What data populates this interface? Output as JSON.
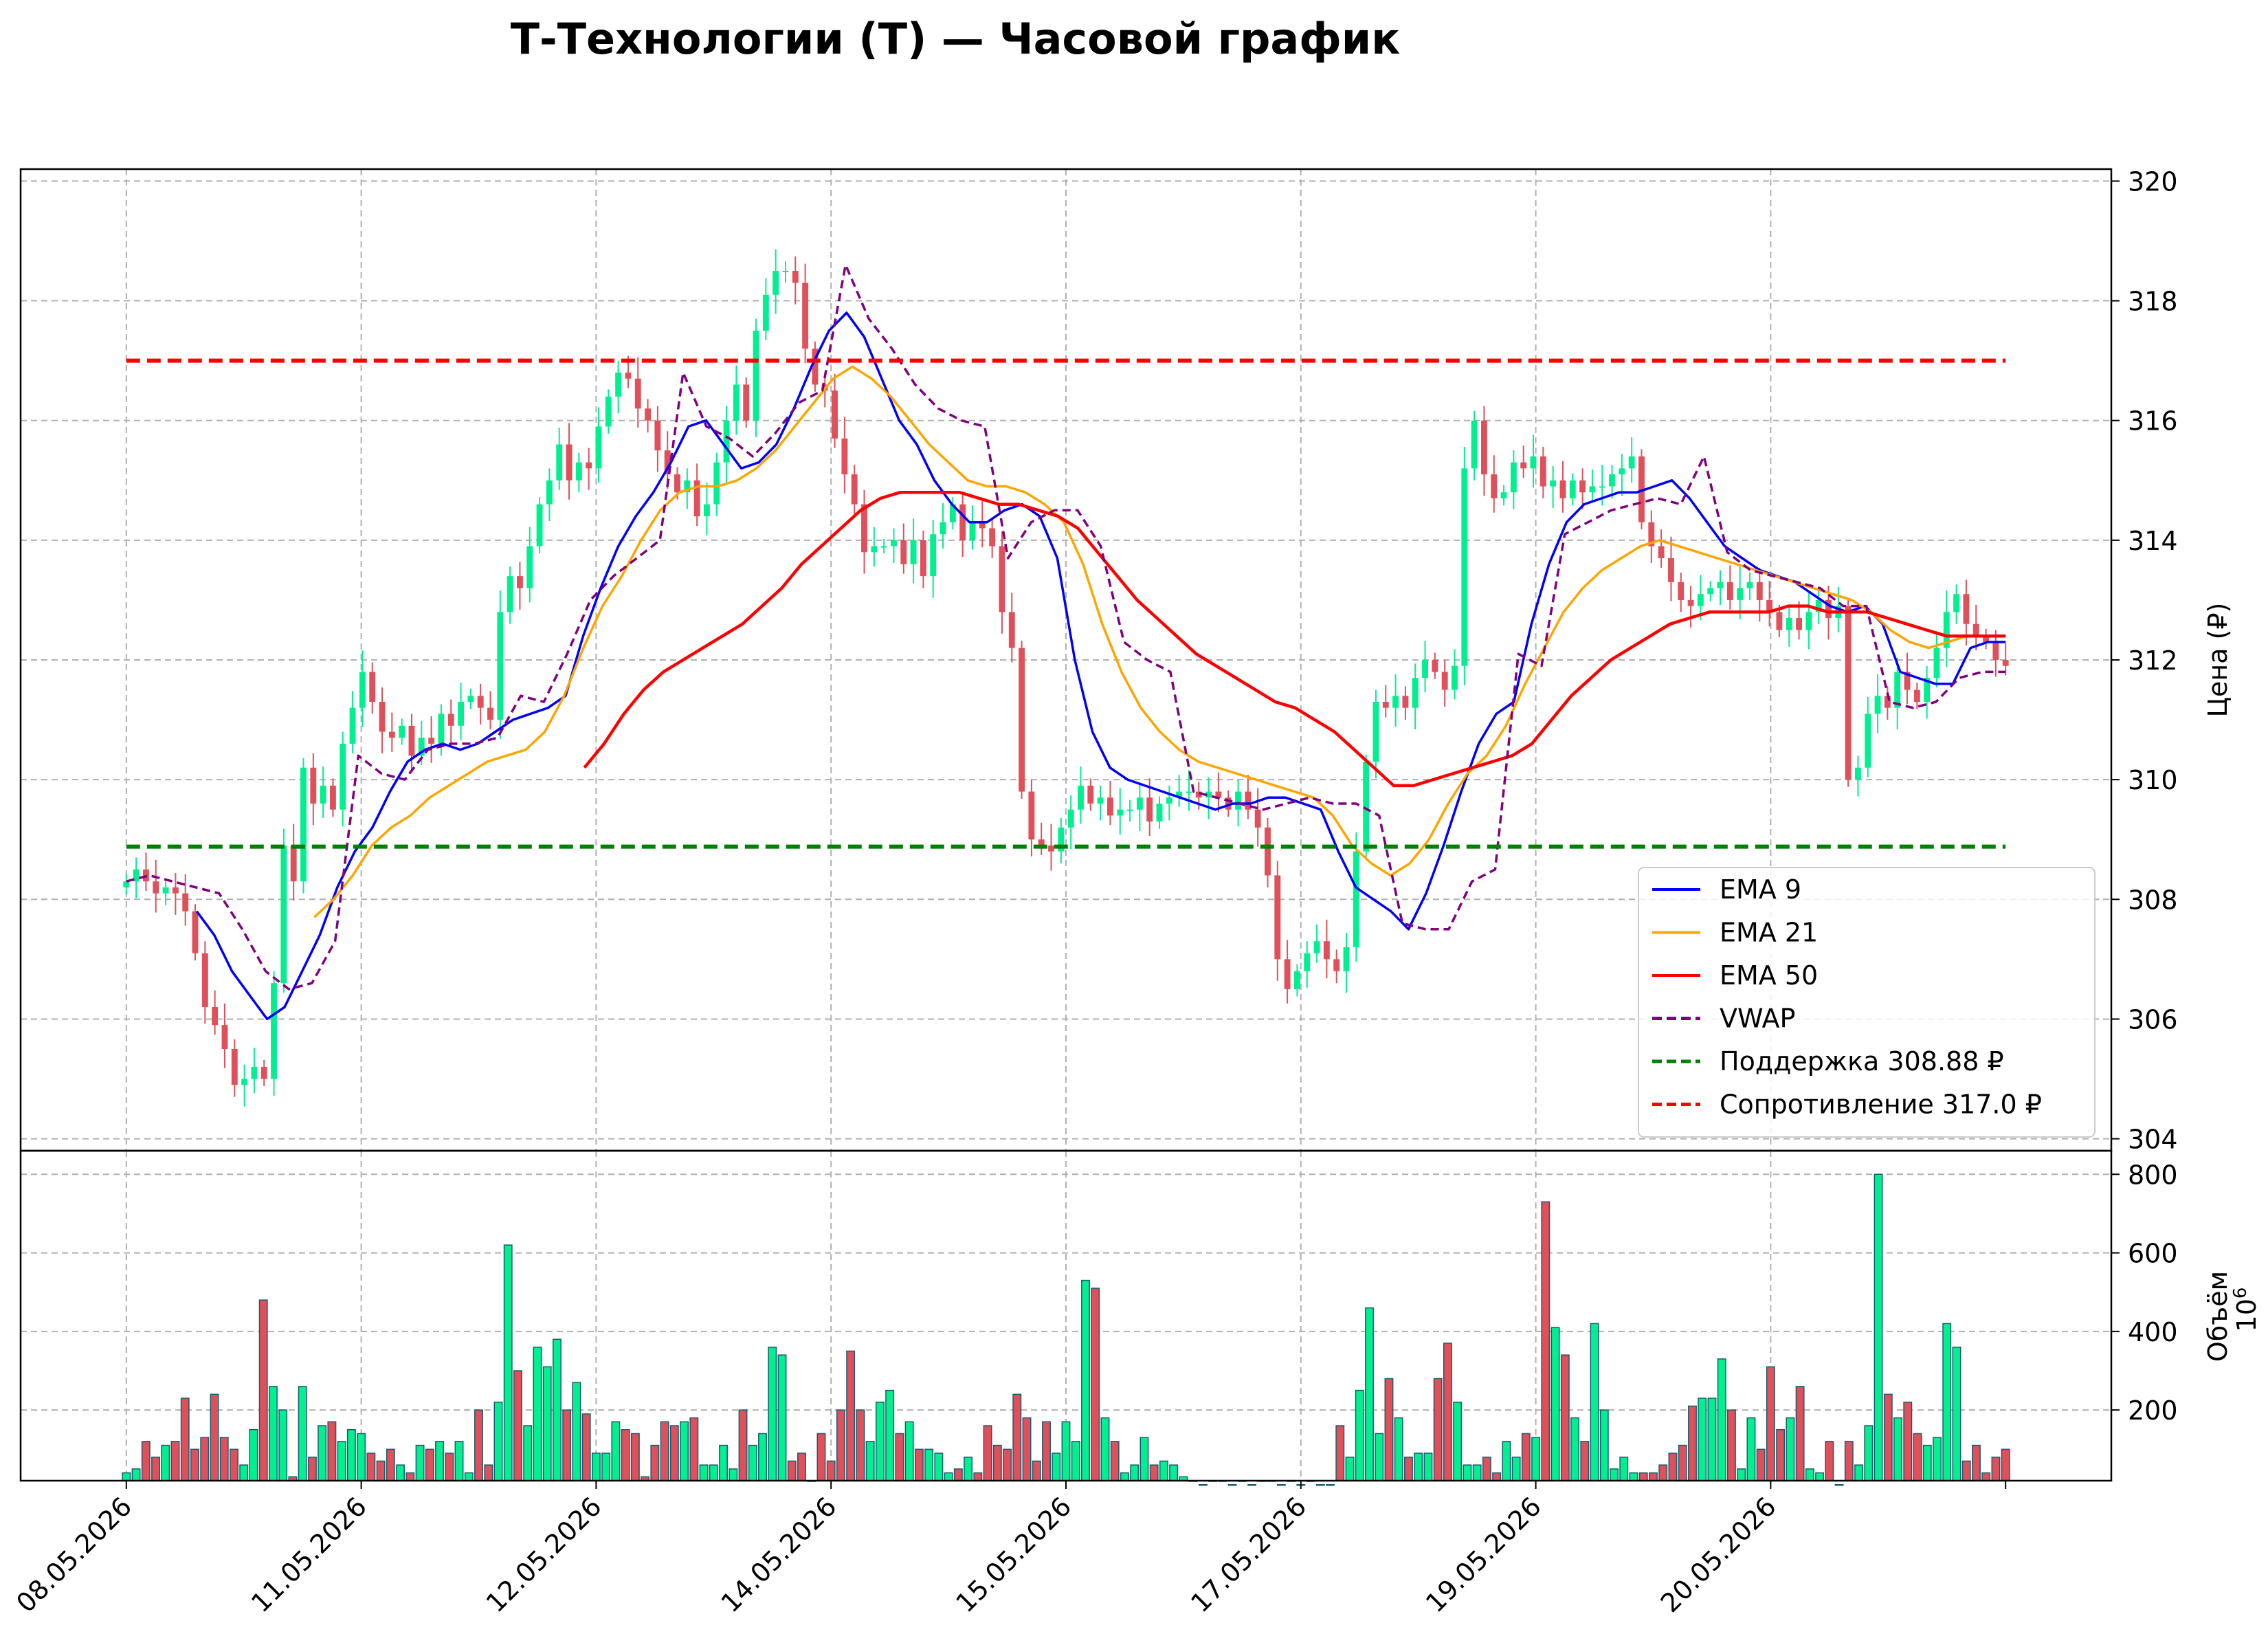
{
  "chart_data": {
    "type": "candlestick",
    "title": "Т-Технологии (Т) — Часовой график",
    "price_panel": {
      "ylabel": "Цена (₽)",
      "ylim": [
        303.8,
        320.2
      ],
      "yticks": [
        304,
        306,
        308,
        310,
        312,
        314,
        316,
        318,
        320
      ],
      "grid": true,
      "legend_position": "lower-right",
      "support": {
        "label": "Поддержка 308.88 ₽",
        "value": 308.88,
        "color": "#008000",
        "x_range": [
          0,
          160
        ]
      },
      "resistance": {
        "label": "Сопротивление 317.0 ₽",
        "value": 317.0,
        "color": "#ff0000",
        "x_range": [
          0,
          160
        ]
      },
      "candle_colors": {
        "up": "#00f090",
        "down": "#e0505a"
      },
      "candles_close": [
        308.3,
        308.5,
        308.3,
        308.1,
        308.2,
        308.1,
        307.8,
        307.1,
        306.2,
        305.9,
        305.5,
        304.9,
        305.0,
        305.2,
        305.0,
        306.6,
        308.9,
        308.3,
        310.2,
        309.6,
        309.9,
        309.5,
        310.6,
        311.2,
        311.8,
        311.3,
        310.8,
        310.7,
        310.9,
        310.4,
        310.7,
        310.6,
        311.1,
        310.9,
        311.3,
        311.4,
        311.2,
        311.0,
        312.8,
        313.4,
        313.2,
        313.9,
        314.6,
        315.0,
        315.6,
        315.0,
        315.3,
        315.2,
        315.9,
        316.4,
        316.8,
        316.7,
        316.2,
        316.0,
        315.5,
        315.1,
        314.8,
        315.0,
        314.4,
        314.6,
        315.3,
        316.0,
        316.6,
        316.0,
        317.5,
        318.1,
        318.5,
        318.5,
        318.3,
        317.2,
        316.6,
        316.5,
        315.7,
        315.1,
        314.6,
        313.8,
        313.9,
        313.9,
        314.0,
        313.6,
        314.0,
        313.4,
        314.1,
        314.3,
        314.6,
        314.0,
        314.3,
        314.2,
        313.9,
        312.8,
        312.2,
        309.8,
        309.0,
        308.9,
        308.8,
        309.2,
        309.5,
        309.9,
        309.6,
        309.7,
        309.4,
        309.5,
        309.5,
        309.7,
        309.3,
        309.6,
        309.7,
        309.8,
        309.8,
        309.7,
        309.8,
        309.7,
        309.5,
        309.8,
        309.5,
        309.2,
        308.4,
        307.0,
        306.5,
        306.8,
        307.1,
        307.3,
        307.0,
        306.8,
        307.2,
        308.8,
        310.3,
        311.3,
        311.2,
        311.4,
        311.2,
        311.7,
        312.0,
        311.8,
        311.5,
        311.9,
        315.2,
        316.0,
        315.1,
        314.7,
        314.8,
        315.3,
        315.2,
        315.4,
        314.9,
        315.0,
        314.7,
        315.0,
        314.8,
        314.9,
        314.9,
        315.1,
        315.2,
        315.4,
        314.3,
        313.9,
        313.7,
        313.3,
        313.0,
        312.9,
        313.1,
        313.2,
        313.3,
        313.0,
        313.2,
        313.3,
        313.0,
        312.8,
        312.5,
        312.7,
        312.5,
        312.8,
        313.0,
        312.7,
        312.9,
        310.0,
        310.2,
        311.1,
        311.4,
        311.2,
        311.8,
        311.5,
        311.3,
        311.7,
        312.2,
        312.8,
        313.1,
        312.6,
        312.4,
        312.3,
        312.0,
        311.9
      ],
      "series": [
        {
          "name": "EMA 9",
          "color": "#0000ff",
          "style": "solid",
          "x0": 6,
          "x1": 160,
          "values": [
            307.8,
            307.4,
            306.8,
            306.4,
            306.0,
            306.2,
            306.8,
            307.4,
            308.2,
            308.8,
            309.2,
            309.8,
            310.3,
            310.5,
            310.6,
            310.5,
            310.6,
            310.8,
            311.0,
            311.1,
            311.2,
            311.4,
            312.4,
            313.2,
            313.9,
            314.4,
            314.8,
            315.3,
            315.9,
            316.0,
            315.6,
            315.2,
            315.3,
            315.6,
            316.2,
            316.9,
            317.5,
            317.8,
            317.4,
            316.7,
            316.0,
            315.6,
            315.0,
            314.6,
            314.3,
            314.3,
            314.5,
            314.6,
            314.4,
            313.7,
            312.0,
            310.8,
            310.2,
            310.0,
            309.9,
            309.8,
            309.7,
            309.6,
            309.5,
            309.6,
            309.6,
            309.7,
            309.7,
            309.6,
            309.5,
            308.8,
            308.2,
            308.0,
            307.8,
            307.5,
            308.1,
            308.9,
            309.8,
            310.6,
            311.1,
            311.3,
            312.6,
            313.6,
            314.3,
            314.6,
            314.7,
            314.8,
            314.8,
            314.9,
            315.0,
            314.7,
            314.3,
            313.9,
            313.7,
            313.5,
            313.4,
            313.3,
            313.1,
            312.9,
            312.8,
            312.9,
            312.6,
            311.8,
            311.7,
            311.6,
            311.6,
            312.2,
            312.3,
            312.3
          ]
        },
        {
          "name": "EMA 21",
          "color": "#ffa500",
          "style": "solid",
          "x0": 16,
          "x1": 160,
          "values": [
            307.7,
            308.0,
            308.4,
            308.9,
            309.2,
            309.4,
            309.7,
            309.9,
            310.1,
            310.3,
            310.4,
            310.5,
            310.8,
            311.4,
            312.2,
            312.9,
            313.4,
            314.0,
            314.5,
            314.8,
            314.9,
            314.9,
            315.0,
            315.2,
            315.5,
            315.9,
            316.3,
            316.7,
            316.9,
            316.7,
            316.4,
            316.0,
            315.6,
            315.3,
            315.0,
            314.9,
            314.9,
            314.8,
            314.6,
            314.3,
            313.6,
            312.6,
            311.8,
            311.2,
            310.8,
            310.5,
            310.3,
            310.2,
            310.1,
            310.0,
            309.9,
            309.8,
            309.7,
            309.4,
            308.9,
            308.6,
            308.4,
            308.6,
            309.0,
            309.6,
            310.1,
            310.4,
            310.9,
            311.6,
            312.2,
            312.8,
            313.2,
            313.5,
            313.7,
            313.9,
            314.0,
            313.9,
            313.8,
            313.7,
            313.6,
            313.5,
            313.4,
            313.3,
            313.2,
            313.1,
            313.0,
            312.8,
            312.5,
            312.3,
            312.2,
            312.3,
            312.4,
            312.4,
            312.4
          ]
        },
        {
          "name": "EMA 50",
          "color": "#ff0000",
          "style": "solid",
          "x0": 39,
          "x1": 160,
          "values": [
            310.2,
            310.6,
            311.1,
            311.5,
            311.8,
            312.0,
            312.2,
            312.4,
            312.6,
            312.9,
            313.2,
            313.6,
            313.9,
            314.2,
            314.5,
            314.7,
            314.8,
            314.8,
            314.8,
            314.8,
            314.7,
            314.6,
            314.6,
            314.5,
            314.4,
            314.2,
            313.8,
            313.4,
            313.0,
            312.7,
            312.4,
            312.1,
            311.9,
            311.7,
            311.5,
            311.3,
            311.2,
            311.0,
            310.8,
            310.5,
            310.2,
            309.9,
            309.9,
            310.0,
            310.1,
            310.2,
            310.3,
            310.4,
            310.6,
            311.0,
            311.4,
            311.7,
            312.0,
            312.2,
            312.4,
            312.6,
            312.7,
            312.8,
            312.8,
            312.8,
            312.8,
            312.9,
            312.9,
            312.8,
            312.8,
            312.8,
            312.7,
            312.6,
            312.5,
            312.4,
            312.4,
            312.4,
            312.4
          ]
        },
        {
          "name": "VWAP",
          "color": "#800080",
          "style": "dashed",
          "x0": 0,
          "x1": 160,
          "values": [
            308.3,
            308.4,
            308.3,
            308.2,
            308.1,
            307.5,
            306.8,
            306.5,
            306.6,
            307.3,
            310.4,
            310.1,
            310.0,
            310.5,
            310.6,
            310.6,
            310.7,
            311.4,
            311.3,
            312.1,
            313.0,
            313.4,
            313.7,
            314.0,
            316.8,
            315.9,
            315.7,
            315.4,
            315.8,
            316.3,
            316.5,
            318.6,
            317.7,
            317.2,
            316.6,
            316.2,
            316.0,
            315.9,
            313.7,
            314.3,
            314.5,
            314.5,
            313.9,
            312.3,
            312.0,
            311.8,
            309.8,
            309.7,
            309.6,
            309.5,
            309.6,
            309.7,
            309.6,
            309.6,
            309.4,
            307.6,
            307.5,
            307.5,
            308.3,
            308.5,
            312.1,
            311.9,
            314.1,
            314.3,
            314.5,
            314.6,
            314.7,
            314.6,
            315.4,
            313.8,
            313.5,
            313.4,
            313.3,
            313.2,
            312.9,
            312.9,
            311.3,
            311.2,
            311.3,
            311.7,
            311.8,
            311.8
          ]
        }
      ]
    },
    "volume_panel": {
      "ylabel": "Объём",
      "scale_label": "1e6",
      "ylim": [
        20,
        860
      ],
      "yticks": [
        200,
        400,
        600,
        800
      ],
      "grid": true,
      "values": [
        40,
        50,
        120,
        80,
        110,
        120,
        230,
        100,
        130,
        240,
        130,
        100,
        60,
        150,
        480,
        260,
        200,
        30,
        260,
        80,
        160,
        170,
        120,
        150,
        140,
        90,
        70,
        100,
        60,
        40,
        110,
        100,
        120,
        90,
        120,
        40,
        200,
        60,
        220,
        620,
        300,
        160,
        360,
        310,
        380,
        200,
        270,
        190,
        90,
        90,
        170,
        150,
        140,
        30,
        110,
        170,
        160,
        170,
        180,
        60,
        60,
        110,
        50,
        200,
        110,
        140,
        360,
        340,
        70,
        90,
        20,
        140,
        70,
        200,
        350,
        200,
        120,
        220,
        250,
        140,
        170,
        100,
        100,
        90,
        40,
        50,
        80,
        40,
        160,
        110,
        100,
        240,
        180,
        70,
        170,
        90,
        170,
        120,
        530,
        510,
        180,
        120,
        40,
        60,
        130,
        60,
        70,
        60,
        30,
        20,
        10,
        20,
        20,
        10,
        20,
        10,
        20,
        20,
        10,
        20,
        10,
        20,
        10,
        10,
        160,
        80,
        250,
        460,
        140,
        280,
        180,
        80,
        90,
        90,
        280,
        370,
        220,
        60,
        60,
        80,
        40,
        120,
        80,
        140,
        130,
        730,
        410,
        340,
        180,
        120,
        420,
        200,
        50,
        80,
        40,
        40,
        40,
        60,
        90,
        110,
        210,
        230,
        230,
        330,
        200,
        50,
        180,
        100,
        310,
        150,
        180,
        260,
        50,
        40,
        120,
        10,
        120,
        60,
        160,
        800,
        240,
        180,
        220,
        140,
        110,
        130,
        420,
        360,
        70,
        110,
        40,
        80,
        100
      ],
      "up_down": "same as price candles"
    },
    "x_axis": {
      "tick_labels": [
        "08.05.2026",
        "11.05.2026",
        "12.05.2026",
        "14.05.2026",
        "15.05.2026",
        "17.05.2026",
        "19.05.2026",
        "20.05.2026"
      ],
      "tick_positions": [
        0,
        20,
        40,
        60,
        80,
        100,
        120,
        140
      ],
      "x_range": [
        -9,
        169
      ]
    },
    "legend": [
      {
        "label": "EMA 9",
        "color": "#0000ff",
        "style": "solid"
      },
      {
        "label": "EMA 21",
        "color": "#ffa500",
        "style": "solid"
      },
      {
        "label": "EMA 50",
        "color": "#ff0000",
        "style": "solid"
      },
      {
        "label": "VWAP",
        "color": "#800080",
        "style": "dashed"
      },
      {
        "label": "Поддержка 308.88 ₽",
        "color": "#008000",
        "style": "dashed"
      },
      {
        "label": "Сопротивление 317.0 ₽",
        "color": "#ff0000",
        "style": "dashed"
      }
    ]
  }
}
